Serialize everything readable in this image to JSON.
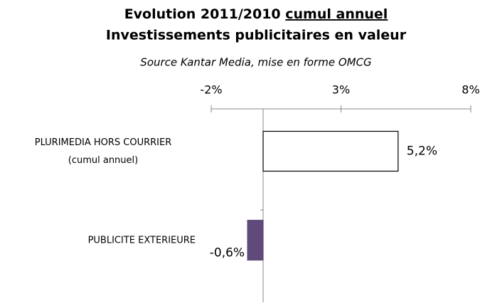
{
  "chart_data": {
    "type": "hbar",
    "title": "Evolution 2011/2010",
    "title_emphasis": "cumul annuel",
    "subtitle": "Investissements publicitaires en valeur",
    "source": "Source Kantar Media, mise en forme OMCG",
    "categories": [
      [
        "PLURIMEDIA HORS COURRIER",
        "(cumul annuel)"
      ],
      [
        "PUBLICITE EXTERIEURE"
      ]
    ],
    "values": [
      5.2,
      -0.6
    ],
    "value_labels": [
      "5,2%",
      "-0,6%"
    ],
    "colors": [
      "#ffffff",
      "#604a7b"
    ],
    "xlim": [
      -2,
      8
    ],
    "xticks": [
      {
        "value": -2,
        "label": "-2%"
      },
      {
        "value": 3,
        "label": "3%"
      },
      {
        "value": 8,
        "label": "8%"
      }
    ]
  }
}
